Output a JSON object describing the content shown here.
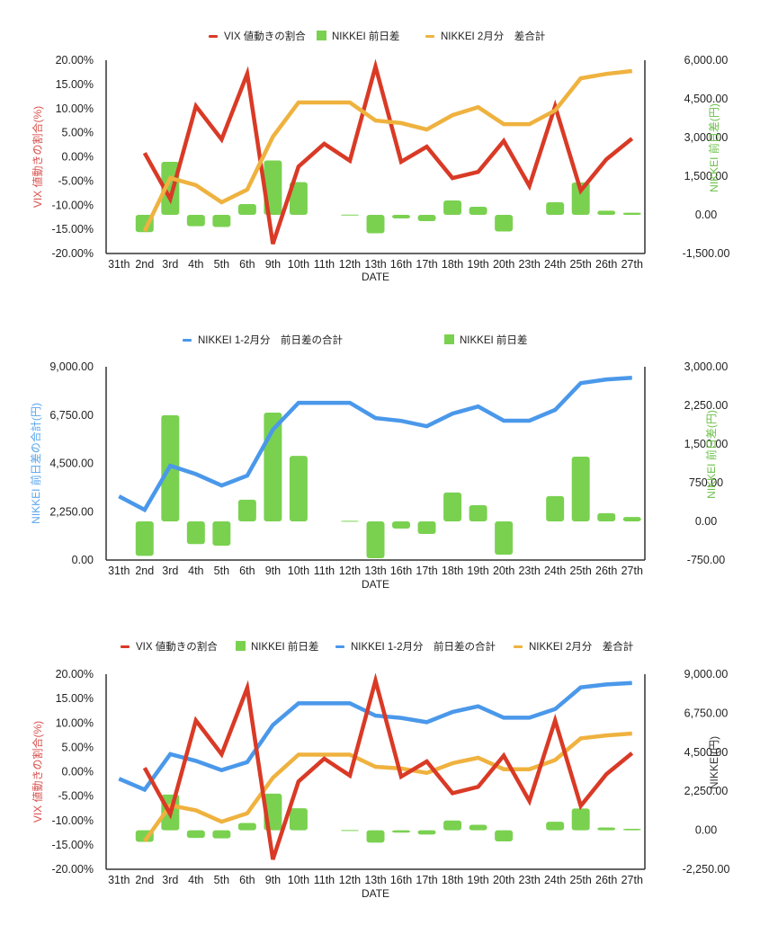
{
  "colors": {
    "vix": "#d93a26",
    "bar": "#7ad150",
    "feb_total": "#efb23f",
    "jan_feb_total": "#4a98ea",
    "axis": "#333333",
    "vix_axis_title": "#d9534f",
    "bar_axis_title": "#6cc04a",
    "blue_axis_title": "#5aa6ee",
    "black_axis_title": "#333333"
  },
  "categories": [
    "31th",
    "2nd",
    "3rd",
    "4th",
    "5th",
    "6th",
    "9th",
    "10th",
    "11th",
    "12th",
    "13th",
    "16th",
    "17th",
    "18th",
    "19th",
    "20th",
    "23th",
    "24th",
    "25th",
    "26th",
    "27th"
  ],
  "chart_data": [
    {
      "type": "bar+line",
      "title": "",
      "xlabel": "DATE",
      "ylabel": "VIX 値動きの割合(%)",
      "y2label": "NIKKEI 前日差(円)",
      "ylim": [
        -20,
        20
      ],
      "y2lim": [
        -1500,
        6000
      ],
      "yticks": [
        "20.00%",
        "15.00%",
        "10.00%",
        "5.00%",
        "0.00%",
        "-5.00%",
        "-10.00%",
        "-15.00%",
        "-20.00%"
      ],
      "y2ticks": [
        "6,000.00",
        "4,500.00",
        "3,000.00",
        "1,500.00",
        "0.00",
        "-1,500.00"
      ],
      "grid": false,
      "legend": "top-center",
      "legend_entries": [
        {
          "label": "VIX 値動きの割合",
          "kind": "line",
          "series": "vix"
        },
        {
          "label": "NIKKEI 前日差",
          "kind": "bar",
          "series": "bar"
        },
        {
          "label": "NIKKEI 2月分　差合計",
          "kind": "line",
          "series": "feb_total"
        }
      ],
      "series": [
        {
          "name": "VIX 値動きの割合",
          "key": "vix",
          "type": "line",
          "axis": "left",
          "values": [
            null,
            0.8,
            -8.7,
            10.5,
            3.6,
            17.2,
            -18.0,
            -2.0,
            2.7,
            -0.8,
            18.7,
            -1.0,
            2.1,
            -4.4,
            -3.1,
            3.3,
            -6.0,
            10.5,
            -7.0,
            -0.5,
            3.8
          ]
        },
        {
          "name": "NIKKEI 前日差",
          "key": "bar",
          "type": "bar",
          "axis": "right",
          "values": [
            null,
            -670,
            2060,
            -440,
            -470,
            420,
            2110,
            1270,
            null,
            10,
            -715,
            -140,
            -245,
            560,
            315,
            -645,
            null,
            490,
            1255,
            160,
            85
          ]
        },
        {
          "name": "NIKKEI 2月分　差合計",
          "key": "feb_total",
          "type": "line",
          "axis": "right",
          "values": [
            null,
            -630,
            1430,
            1150,
            490,
            980,
            3030,
            4360,
            4360,
            4360,
            3660,
            3560,
            3310,
            3870,
            4180,
            3520,
            3520,
            4050,
            5300,
            5470,
            5580
          ]
        }
      ]
    },
    {
      "type": "bar+line",
      "title": "",
      "xlabel": "DATE",
      "ylabel": "NIKKEI 前日差の合計(円)",
      "y2label": "NIKKEI 前日差(円)",
      "ylim": [
        0,
        9000
      ],
      "y2lim": [
        -750,
        3000
      ],
      "yticks": [
        "9,000.00",
        "6,750.00",
        "4,500.00",
        "2,250.00",
        "0.00"
      ],
      "y2ticks": [
        "3,000.00",
        "2,250.00",
        "1,500.00",
        "750.00",
        "0.00",
        "-750.00"
      ],
      "grid": false,
      "legend": "top-center",
      "legend_entries": [
        {
          "label": "NIKKEI 1-2月分　前日差の合計",
          "kind": "line",
          "series": "jan_feb_total"
        },
        {
          "label": "NIKKEI 前日差",
          "kind": "bar",
          "series": "bar"
        }
      ],
      "series": [
        {
          "name": "NIKKEI 1-2月分　前日差の合計",
          "key": "jan_feb_total",
          "type": "line",
          "axis": "left",
          "values": [
            2970,
            2340,
            4390,
            4000,
            3470,
            3930,
            6070,
            7320,
            7320,
            7320,
            6610,
            6480,
            6230,
            6820,
            7150,
            6490,
            6490,
            6990,
            8240,
            8410,
            8490
          ]
        },
        {
          "name": "NIKKEI 前日差",
          "key": "bar",
          "type": "bar",
          "axis": "right",
          "values": [
            null,
            -670,
            2060,
            -440,
            -470,
            420,
            2110,
            1270,
            null,
            10,
            -715,
            -140,
            -245,
            560,
            315,
            -645,
            null,
            490,
            1255,
            160,
            85
          ]
        }
      ]
    },
    {
      "type": "bar+line",
      "title": "",
      "xlabel": "DATE",
      "ylabel": "VIX 値動きの割合(%)",
      "y2label": "NIKKEI(円)",
      "ylim": [
        -20,
        20
      ],
      "y2lim": [
        -2250,
        9000
      ],
      "yticks": [
        "20.00%",
        "15.00%",
        "10.00%",
        "5.00%",
        "0.00%",
        "-5.00%",
        "-10.00%",
        "-15.00%",
        "-20.00%"
      ],
      "y2ticks": [
        "9,000.00",
        "6,750.00",
        "4,500.00",
        "2,250.00",
        "0.00",
        "-2,250.00"
      ],
      "grid": false,
      "legend": "top-center",
      "legend_entries": [
        {
          "label": "VIX 値動きの割合",
          "kind": "line",
          "series": "vix"
        },
        {
          "label": "NIKKEI 前日差",
          "kind": "bar",
          "series": "bar"
        },
        {
          "label": "NIKKEI 1-2月分　前日差の合計",
          "kind": "line",
          "series": "jan_feb_total"
        },
        {
          "label": "NIKKEI 2月分　差合計",
          "kind": "line",
          "series": "feb_total"
        }
      ],
      "series": [
        {
          "name": "NIKKEI 前日差",
          "key": "bar",
          "type": "bar",
          "axis": "right",
          "values": [
            null,
            -670,
            2060,
            -440,
            -470,
            420,
            2110,
            1270,
            null,
            10,
            -715,
            -140,
            -245,
            560,
            315,
            -645,
            null,
            490,
            1255,
            160,
            85
          ]
        },
        {
          "name": "NIKKEI 1-2月分　前日差の合計",
          "key": "jan_feb_total",
          "type": "line",
          "axis": "right",
          "values": [
            2970,
            2340,
            4390,
            4000,
            3470,
            3930,
            6070,
            7320,
            7320,
            7320,
            6610,
            6480,
            6230,
            6820,
            7150,
            6490,
            6490,
            6990,
            8240,
            8410,
            8490
          ]
        },
        {
          "name": "NIKKEI 2月分　差合計",
          "key": "feb_total",
          "type": "line",
          "axis": "right",
          "values": [
            null,
            -630,
            1430,
            1150,
            490,
            980,
            3030,
            4360,
            4360,
            4360,
            3660,
            3560,
            3310,
            3870,
            4180,
            3520,
            3520,
            4050,
            5300,
            5470,
            5580
          ]
        },
        {
          "name": "VIX 値動きの割合",
          "key": "vix",
          "type": "line",
          "axis": "left",
          "values": [
            null,
            0.8,
            -8.7,
            10.5,
            3.6,
            17.2,
            -18.0,
            -2.0,
            2.7,
            -0.8,
            18.7,
            -1.0,
            2.1,
            -4.4,
            -3.1,
            3.3,
            -6.0,
            10.5,
            -7.0,
            -0.5,
            3.8
          ]
        }
      ]
    }
  ]
}
